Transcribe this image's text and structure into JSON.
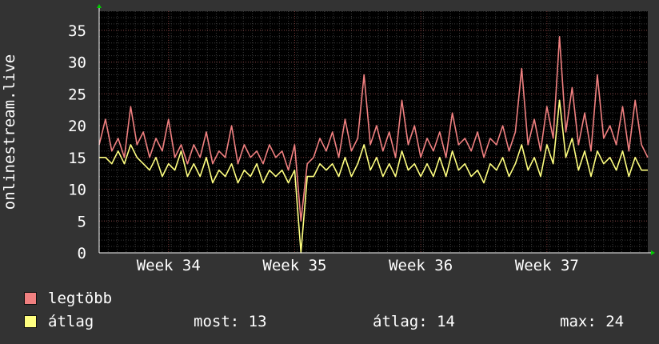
{
  "colors": {
    "background": "#333333",
    "plot_background": "#000000",
    "max_series": "#f08080",
    "avg_series": "#ffff80",
    "text": "#ffffff"
  },
  "chart_data": {
    "type": "line",
    "ylabel": "onlinestream.live",
    "ylim": [
      0,
      38
    ],
    "y_ticks": [
      0,
      5,
      10,
      15,
      20,
      25,
      30,
      35
    ],
    "x_ticks": [
      "Week 34",
      "Week 35",
      "Week 36",
      "Week 37"
    ],
    "x_tick_positions": [
      1.45,
      2.45,
      3.45,
      4.45
    ],
    "xlim": [
      0.9,
      5.25
    ],
    "grid": true,
    "series": [
      {
        "name": "legtöbb",
        "x": [
          0.9,
          0.95,
          1.0,
          1.05,
          1.1,
          1.15,
          1.2,
          1.25,
          1.3,
          1.35,
          1.4,
          1.45,
          1.5,
          1.55,
          1.6,
          1.65,
          1.7,
          1.75,
          1.8,
          1.85,
          1.9,
          1.95,
          2.0,
          2.05,
          2.1,
          2.15,
          2.2,
          2.25,
          2.3,
          2.35,
          2.4,
          2.45,
          2.5,
          2.55,
          2.6,
          2.65,
          2.7,
          2.75,
          2.8,
          2.85,
          2.9,
          2.95,
          3.0,
          3.05,
          3.1,
          3.15,
          3.2,
          3.25,
          3.3,
          3.35,
          3.4,
          3.45,
          3.5,
          3.55,
          3.6,
          3.65,
          3.7,
          3.75,
          3.8,
          3.85,
          3.9,
          3.95,
          4.0,
          4.05,
          4.1,
          4.15,
          4.2,
          4.25,
          4.3,
          4.35,
          4.4,
          4.45,
          4.5,
          4.55,
          4.6,
          4.65,
          4.7,
          4.75,
          4.8,
          4.85,
          4.9,
          4.95,
          5.0,
          5.05,
          5.1,
          5.15,
          5.2,
          5.25
        ],
        "values": [
          17,
          21,
          16,
          18,
          15,
          23,
          17,
          19,
          15,
          18,
          16,
          21,
          15,
          17,
          14,
          17,
          15,
          19,
          14,
          16,
          15,
          20,
          14,
          17,
          15,
          16,
          14,
          17,
          15,
          16,
          13,
          17,
          5,
          14,
          15,
          18,
          16,
          19,
          15,
          21,
          16,
          18,
          28,
          17,
          20,
          16,
          19,
          15,
          24,
          17,
          20,
          15,
          18,
          16,
          19,
          15,
          22,
          17,
          18,
          16,
          19,
          15,
          18,
          17,
          20,
          16,
          19,
          29,
          17,
          21,
          16,
          23,
          18,
          34,
          19,
          26,
          17,
          22,
          16,
          28,
          18,
          20,
          17,
          23,
          16,
          24,
          17,
          15
        ]
      },
      {
        "name": "átlag",
        "x": [
          0.9,
          0.95,
          1.0,
          1.05,
          1.1,
          1.15,
          1.2,
          1.25,
          1.3,
          1.35,
          1.4,
          1.45,
          1.5,
          1.55,
          1.6,
          1.65,
          1.7,
          1.75,
          1.8,
          1.85,
          1.9,
          1.95,
          2.0,
          2.05,
          2.1,
          2.15,
          2.2,
          2.25,
          2.3,
          2.35,
          2.4,
          2.45,
          2.5,
          2.55,
          2.6,
          2.65,
          2.7,
          2.75,
          2.8,
          2.85,
          2.9,
          2.95,
          3.0,
          3.05,
          3.1,
          3.15,
          3.2,
          3.25,
          3.3,
          3.35,
          3.4,
          3.45,
          3.5,
          3.55,
          3.6,
          3.65,
          3.7,
          3.75,
          3.8,
          3.85,
          3.9,
          3.95,
          4.0,
          4.05,
          4.1,
          4.15,
          4.2,
          4.25,
          4.3,
          4.35,
          4.4,
          4.45,
          4.5,
          4.55,
          4.6,
          4.65,
          4.7,
          4.75,
          4.8,
          4.85,
          4.9,
          4.95,
          5.0,
          5.05,
          5.1,
          5.15,
          5.2,
          5.25
        ],
        "values": [
          15,
          15,
          14,
          16,
          14,
          17,
          15,
          14,
          13,
          15,
          12,
          14,
          13,
          16,
          12,
          14,
          12,
          15,
          11,
          13,
          12,
          14,
          11,
          13,
          12,
          14,
          11,
          13,
          12,
          13,
          11,
          13,
          0,
          12,
          12,
          14,
          13,
          14,
          12,
          15,
          12,
          14,
          17,
          13,
          15,
          12,
          14,
          12,
          16,
          13,
          14,
          12,
          14,
          12,
          15,
          12,
          16,
          13,
          14,
          12,
          13,
          11,
          14,
          13,
          15,
          12,
          14,
          17,
          13,
          15,
          12,
          17,
          14,
          24,
          15,
          18,
          13,
          16,
          12,
          16,
          14,
          15,
          13,
          16,
          12,
          15,
          13,
          13
        ]
      }
    ]
  },
  "legend": {
    "max_label": "legtöbb",
    "avg_label": "átlag"
  },
  "stats": {
    "most": "most: 13",
    "atlag": "átlag: 14",
    "max": "max: 24"
  }
}
